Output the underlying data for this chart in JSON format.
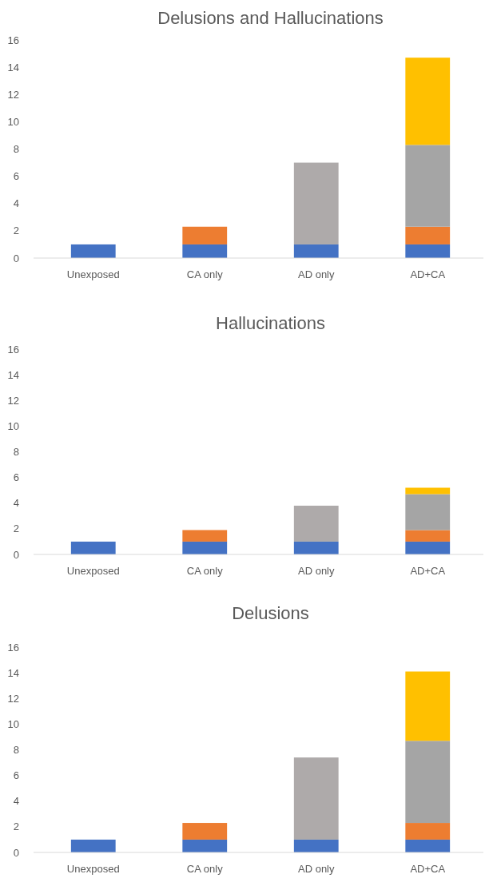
{
  "chart_data": [
    {
      "type": "bar",
      "title": "Delusions and Hallucinations",
      "categories": [
        "Unexposed",
        "CA only",
        "AD only",
        "AD+CA"
      ],
      "stacked": true,
      "ylim": [
        0,
        16
      ],
      "yticks": [
        0,
        2,
        4,
        6,
        8,
        10,
        12,
        14,
        16
      ],
      "grid": false,
      "series": [
        {
          "color": "#4472c4",
          "values": [
            1,
            1,
            1,
            1
          ]
        },
        {
          "color": "#ed7d31",
          "values": [
            null,
            1.3,
            null,
            1.3
          ]
        },
        {
          "colors": [
            null,
            null,
            "#aeaaaa",
            "#a5a5a5"
          ],
          "values": [
            null,
            null,
            6,
            6
          ]
        },
        {
          "color": "#ffc000",
          "values": [
            null,
            null,
            null,
            6.4
          ]
        }
      ]
    },
    {
      "type": "bar",
      "title": "Hallucinations",
      "categories": [
        "Unexposed",
        "CA only",
        "AD only",
        "AD+CA"
      ],
      "stacked": true,
      "ylim": [
        0,
        16
      ],
      "yticks": [
        0,
        2,
        4,
        6,
        8,
        10,
        12,
        14,
        16
      ],
      "grid": false,
      "series": [
        {
          "color": "#4472c4",
          "values": [
            1,
            1,
            1,
            1
          ]
        },
        {
          "color": "#ed7d31",
          "values": [
            null,
            0.9,
            null,
            0.9
          ]
        },
        {
          "colors": [
            null,
            null,
            "#aeaaaa",
            "#a5a5a5"
          ],
          "values": [
            null,
            null,
            2.8,
            2.8
          ]
        },
        {
          "color": "#ffc000",
          "values": [
            null,
            null,
            null,
            0.5
          ]
        }
      ]
    },
    {
      "type": "bar",
      "title": "Delusions",
      "categories": [
        "Unexposed",
        "CA only",
        "AD only",
        "AD+CA"
      ],
      "stacked": true,
      "ylim": [
        0,
        16
      ],
      "yticks": [
        0,
        2,
        4,
        6,
        8,
        10,
        12,
        14,
        16
      ],
      "grid": false,
      "series": [
        {
          "color": "#4472c4",
          "values": [
            1,
            1,
            1,
            1
          ]
        },
        {
          "color": "#ed7d31",
          "values": [
            null,
            1.3,
            null,
            1.3
          ]
        },
        {
          "colors": [
            null,
            null,
            "#aeaaaa",
            "#a5a5a5"
          ],
          "values": [
            null,
            null,
            6.4,
            6.4
          ]
        },
        {
          "color": "#ffc000",
          "values": [
            null,
            null,
            null,
            5.4
          ]
        }
      ]
    }
  ]
}
